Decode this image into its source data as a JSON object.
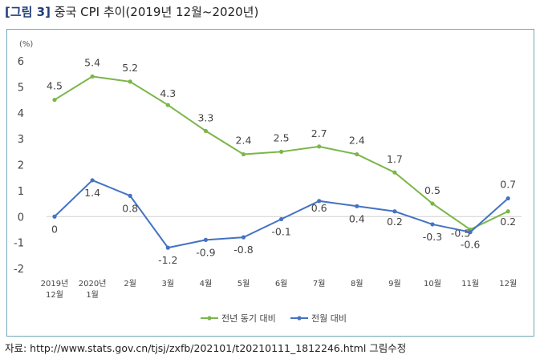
{
  "header": {
    "tag": "[그림 3]",
    "title": "중국 CPI 추이(2019년 12월~2020년)"
  },
  "source": "자료: http://www.stats.gov.cn/tjsj/zxfb/202101/t20210111_1812246.html 그림수정",
  "chart_data": {
    "type": "line",
    "unit_label": "(%)",
    "categories": [
      [
        "2019년",
        "12월"
      ],
      [
        "2020년",
        "1월"
      ],
      [
        "2월"
      ],
      [
        "3월"
      ],
      [
        "4월"
      ],
      [
        "5월"
      ],
      [
        "6월"
      ],
      [
        "7월"
      ],
      [
        "8월"
      ],
      [
        "9월"
      ],
      [
        "10월"
      ],
      [
        "11월"
      ],
      [
        "12월"
      ]
    ],
    "ylim": [
      -2,
      6
    ],
    "yticks": [
      -2,
      -1,
      0,
      1,
      2,
      3,
      4,
      5,
      6
    ],
    "grid": false,
    "legend_position": "bottom",
    "series": [
      {
        "name": "전년 동기 대비",
        "color": "#7ab648",
        "values": [
          4.5,
          5.4,
          5.2,
          4.3,
          3.3,
          2.4,
          2.5,
          2.7,
          2.4,
          1.7,
          0.5,
          -0.5,
          0.2
        ],
        "labels": [
          "4.5",
          "5.4",
          "5.2",
          "4.3",
          "3.3",
          "2.4",
          "2.5",
          "2.7",
          "2.4",
          "1.7",
          "0.5",
          "-0.5",
          "0.2"
        ]
      },
      {
        "name": "전월 대비",
        "color": "#4472c4",
        "values": [
          0,
          1.4,
          0.8,
          -1.2,
          -0.9,
          -0.8,
          -0.1,
          0.6,
          0.4,
          0.2,
          -0.3,
          -0.6,
          0.7
        ],
        "labels": [
          "0",
          "1.4",
          "0.8",
          "-1.2",
          "-0.9",
          "-0.8",
          "-0.1",
          "0.6",
          "0.4",
          "0.2",
          "-0.3",
          "-0.6",
          "0.7"
        ]
      }
    ]
  }
}
